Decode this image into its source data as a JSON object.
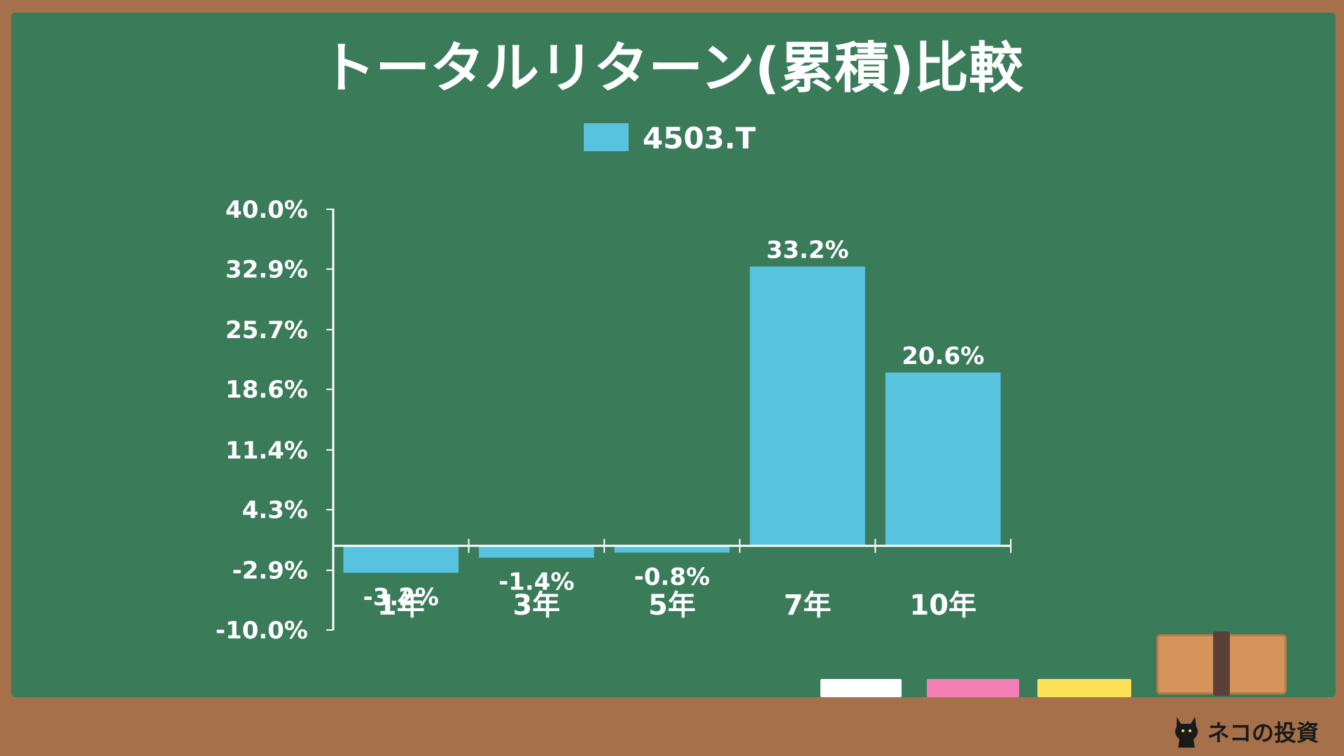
{
  "chart_data": {
    "type": "bar",
    "title": "トータルリターン(累積)比較",
    "legend": {
      "position": "top-center"
    },
    "categories": [
      "1年",
      "3年",
      "5年",
      "7年",
      "10年"
    ],
    "series": [
      {
        "name": "4503.T",
        "color": "#58c3df",
        "values": [
          -3.2,
          -1.4,
          -0.8,
          33.2,
          20.6
        ]
      }
    ],
    "data_labels": [
      "-3.2%",
      "-1.4%",
      "-0.8%",
      "33.2%",
      "20.6%"
    ],
    "ylim": [
      -10.0,
      40.0
    ],
    "yticks": [
      -10.0,
      -2.9,
      4.3,
      11.4,
      18.6,
      25.7,
      32.9,
      40.0
    ],
    "ytick_labels": [
      "-10.0%",
      "-2.9%",
      "4.3%",
      "11.4%",
      "18.6%",
      "25.7%",
      "32.9%",
      "40.0%"
    ],
    "xlabel": "",
    "ylabel": "",
    "grid": false
  },
  "decor": {
    "board_color": "#3a7b5a",
    "frame_color": "#a6714a",
    "chalk_colors": [
      "#ffffff",
      "#f47fb6",
      "#fbe058"
    ],
    "brand_icon": "cat-icon",
    "brand_text": "ネコの投資"
  }
}
